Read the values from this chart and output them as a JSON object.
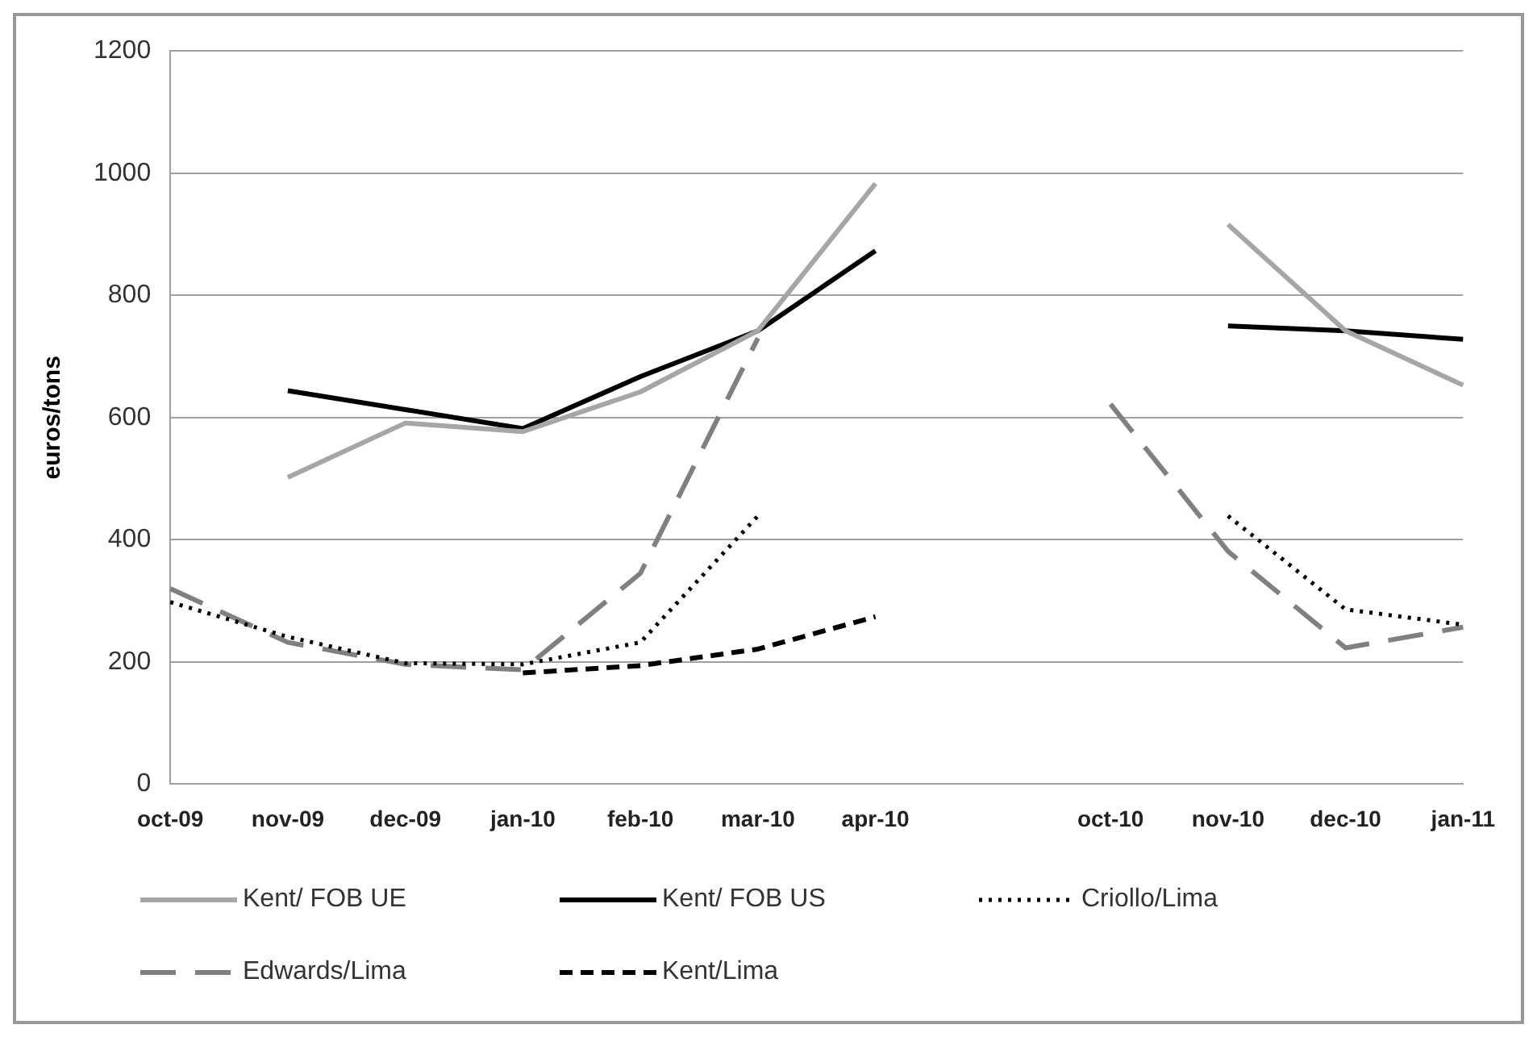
{
  "chart_data": {
    "type": "line",
    "ylabel": "euros/tons",
    "categories": [
      "oct-09",
      "nov-09",
      "dec-09",
      "jan-10",
      "feb-10",
      "mar-10",
      "apr-10",
      null,
      "oct-10",
      "nov-10",
      "dec-10",
      "jan-11"
    ],
    "series": [
      {
        "name": "Kent/ FOB UE",
        "color": "#a6a6a6",
        "line_style": "solid",
        "values": [
          null,
          502,
          591,
          577,
          642,
          742,
          983,
          null,
          null,
          916,
          742,
          653
        ]
      },
      {
        "name": "Kent/ FOB US",
        "color": "#000000",
        "line_style": "solid",
        "values": [
          null,
          644,
          613,
          582,
          667,
          742,
          873,
          null,
          null,
          750,
          742,
          728
        ]
      },
      {
        "name": "Criollo/Lima",
        "color": "#000000",
        "line_style": "dotted",
        "values": [
          298,
          241,
          198,
          196,
          232,
          439,
          null,
          null,
          null,
          439,
          286,
          261
        ]
      },
      {
        "name": "Edwards/Lima",
        "color": "#808080",
        "line_style": "dashed",
        "values": [
          320,
          232,
          196,
          187,
          345,
          730,
          null,
          null,
          622,
          381,
          223,
          257
        ]
      },
      {
        "name": "Kent/Lima",
        "color": "#000000",
        "line_style": "dashed",
        "values": [
          null,
          null,
          null,
          182,
          194,
          221,
          274,
          null,
          null,
          null,
          null,
          null
        ]
      }
    ],
    "ylim": [
      0,
      1200
    ],
    "yticks": [
      0,
      200,
      400,
      600,
      800,
      1000,
      1200
    ],
    "grid": "y",
    "legend": "bottom",
    "marker": "none"
  }
}
